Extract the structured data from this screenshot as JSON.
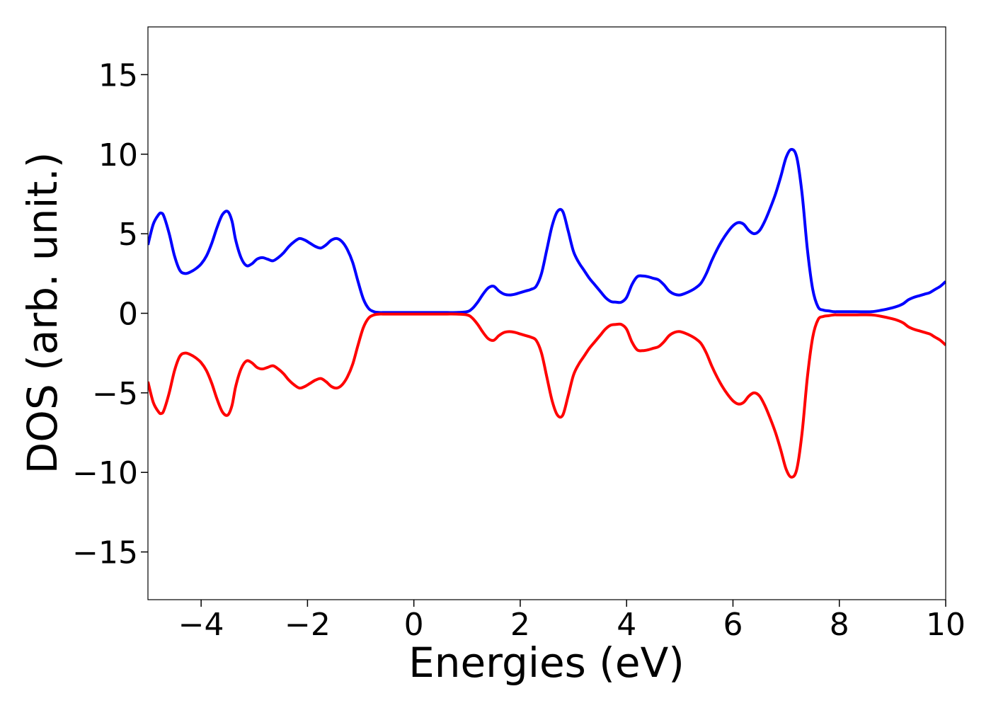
{
  "chart_data": {
    "type": "line",
    "xlabel": "Energies (eV)",
    "ylabel": "DOS (arb. unit.)",
    "xlim": [
      -5,
      10
    ],
    "ylim": [
      -18,
      18
    ],
    "xticks": [
      -4,
      -2,
      0,
      2,
      4,
      6,
      8,
      10
    ],
    "yticks": [
      -15,
      -10,
      -5,
      0,
      5,
      10,
      15
    ],
    "xtick_labels": [
      "−4",
      "−2",
      "0",
      "2",
      "4",
      "6",
      "8",
      "10"
    ],
    "ytick_labels": [
      "−15",
      "−10",
      "−5",
      "0",
      "5",
      "10",
      "15"
    ],
    "grid": false,
    "series": [
      {
        "color": "#0000ff",
        "x": [
          -5.0,
          -4.9,
          -4.8,
          -4.75,
          -4.7,
          -4.6,
          -4.5,
          -4.4,
          -4.3,
          -4.2,
          -4.1,
          -4.0,
          -3.9,
          -3.8,
          -3.7,
          -3.6,
          -3.5,
          -3.42,
          -3.35,
          -3.25,
          -3.15,
          -3.05,
          -2.95,
          -2.85,
          -2.75,
          -2.65,
          -2.55,
          -2.45,
          -2.35,
          -2.25,
          -2.15,
          -2.05,
          -1.95,
          -1.85,
          -1.75,
          -1.65,
          -1.55,
          -1.45,
          -1.35,
          -1.25,
          -1.15,
          -1.05,
          -0.95,
          -0.85,
          -0.75,
          -0.65,
          -0.55,
          -0.45,
          0.0,
          0.5,
          0.8,
          1.0,
          1.1,
          1.2,
          1.3,
          1.4,
          1.5,
          1.6,
          1.7,
          1.8,
          1.9,
          2.0,
          2.1,
          2.2,
          2.3,
          2.4,
          2.5,
          2.6,
          2.7,
          2.8,
          2.9,
          3.0,
          3.1,
          3.2,
          3.3,
          3.4,
          3.5,
          3.6,
          3.7,
          3.8,
          3.9,
          4.0,
          4.1,
          4.2,
          4.3,
          4.4,
          4.5,
          4.6,
          4.7,
          4.8,
          4.9,
          5.0,
          5.1,
          5.2,
          5.3,
          5.4,
          5.5,
          5.6,
          5.7,
          5.8,
          5.9,
          6.0,
          6.1,
          6.2,
          6.3,
          6.4,
          6.5,
          6.6,
          6.7,
          6.8,
          6.9,
          7.0,
          7.1,
          7.2,
          7.3,
          7.4,
          7.5,
          7.6,
          7.7,
          7.8,
          7.9,
          8.0,
          8.3,
          8.6,
          8.8,
          9.0,
          9.1,
          9.2,
          9.3,
          9.4,
          9.5,
          9.6,
          9.7,
          9.8,
          9.9,
          10.0
        ],
        "y": [
          4.3,
          5.6,
          6.2,
          6.3,
          6.1,
          5.0,
          3.6,
          2.7,
          2.5,
          2.6,
          2.8,
          3.1,
          3.6,
          4.4,
          5.4,
          6.2,
          6.4,
          5.8,
          4.6,
          3.5,
          3.0,
          3.1,
          3.4,
          3.5,
          3.4,
          3.3,
          3.5,
          3.8,
          4.2,
          4.5,
          4.7,
          4.6,
          4.4,
          4.2,
          4.1,
          4.3,
          4.6,
          4.7,
          4.5,
          4.0,
          3.2,
          2.0,
          0.9,
          0.3,
          0.1,
          0.05,
          0.05,
          0.05,
          0.05,
          0.05,
          0.05,
          0.1,
          0.3,
          0.7,
          1.2,
          1.6,
          1.7,
          1.4,
          1.2,
          1.15,
          1.2,
          1.3,
          1.4,
          1.5,
          1.7,
          2.5,
          4.0,
          5.5,
          6.4,
          6.4,
          5.2,
          3.9,
          3.2,
          2.7,
          2.2,
          1.8,
          1.4,
          1.0,
          0.75,
          0.7,
          0.7,
          1.0,
          1.8,
          2.3,
          2.35,
          2.3,
          2.2,
          2.1,
          1.8,
          1.4,
          1.2,
          1.15,
          1.25,
          1.4,
          1.6,
          1.9,
          2.5,
          3.3,
          4.0,
          4.6,
          5.1,
          5.5,
          5.7,
          5.6,
          5.2,
          5.0,
          5.2,
          5.8,
          6.6,
          7.5,
          8.6,
          9.8,
          10.3,
          9.8,
          7.5,
          4.0,
          1.5,
          0.4,
          0.2,
          0.15,
          0.1,
          0.1,
          0.1,
          0.1,
          0.2,
          0.35,
          0.45,
          0.6,
          0.85,
          1.0,
          1.1,
          1.2,
          1.3,
          1.5,
          1.7,
          2.0
        ]
      },
      {
        "color": "#ff0000",
        "x": [
          -5.0,
          -4.9,
          -4.8,
          -4.75,
          -4.7,
          -4.6,
          -4.5,
          -4.4,
          -4.3,
          -4.2,
          -4.1,
          -4.0,
          -3.9,
          -3.8,
          -3.7,
          -3.6,
          -3.5,
          -3.42,
          -3.35,
          -3.25,
          -3.15,
          -3.05,
          -2.95,
          -2.85,
          -2.75,
          -2.65,
          -2.55,
          -2.45,
          -2.35,
          -2.25,
          -2.15,
          -2.05,
          -1.95,
          -1.85,
          -1.75,
          -1.65,
          -1.55,
          -1.45,
          -1.35,
          -1.25,
          -1.15,
          -1.05,
          -0.95,
          -0.85,
          -0.75,
          -0.65,
          -0.55,
          -0.45,
          0.0,
          0.5,
          0.8,
          1.0,
          1.1,
          1.2,
          1.3,
          1.4,
          1.5,
          1.6,
          1.7,
          1.8,
          1.9,
          2.0,
          2.1,
          2.2,
          2.3,
          2.4,
          2.5,
          2.6,
          2.7,
          2.8,
          2.9,
          3.0,
          3.1,
          3.2,
          3.3,
          3.4,
          3.5,
          3.6,
          3.7,
          3.8,
          3.9,
          4.0,
          4.1,
          4.2,
          4.3,
          4.4,
          4.5,
          4.6,
          4.7,
          4.8,
          4.9,
          5.0,
          5.1,
          5.2,
          5.3,
          5.4,
          5.5,
          5.6,
          5.7,
          5.8,
          5.9,
          6.0,
          6.1,
          6.2,
          6.3,
          6.4,
          6.5,
          6.6,
          6.7,
          6.8,
          6.9,
          7.0,
          7.1,
          7.2,
          7.3,
          7.4,
          7.5,
          7.6,
          7.7,
          7.8,
          7.9,
          8.0,
          8.3,
          8.6,
          8.8,
          9.0,
          9.1,
          9.2,
          9.3,
          9.4,
          9.5,
          9.6,
          9.7,
          9.8,
          9.9,
          10.0
        ],
        "y": [
          -4.3,
          -5.6,
          -6.2,
          -6.3,
          -6.1,
          -5.0,
          -3.6,
          -2.7,
          -2.5,
          -2.6,
          -2.8,
          -3.1,
          -3.6,
          -4.4,
          -5.4,
          -6.2,
          -6.4,
          -5.8,
          -4.6,
          -3.5,
          -3.0,
          -3.1,
          -3.4,
          -3.5,
          -3.4,
          -3.3,
          -3.5,
          -3.8,
          -4.2,
          -4.5,
          -4.7,
          -4.6,
          -4.4,
          -4.2,
          -4.1,
          -4.3,
          -4.6,
          -4.7,
          -4.5,
          -4.0,
          -3.2,
          -2.0,
          -0.9,
          -0.3,
          -0.1,
          -0.05,
          -0.05,
          -0.05,
          -0.05,
          -0.05,
          -0.05,
          -0.1,
          -0.3,
          -0.7,
          -1.2,
          -1.6,
          -1.7,
          -1.4,
          -1.2,
          -1.15,
          -1.2,
          -1.3,
          -1.4,
          -1.5,
          -1.7,
          -2.5,
          -4.0,
          -5.5,
          -6.4,
          -6.4,
          -5.2,
          -3.9,
          -3.2,
          -2.7,
          -2.2,
          -1.8,
          -1.4,
          -1.0,
          -0.75,
          -0.7,
          -0.7,
          -1.0,
          -1.8,
          -2.3,
          -2.35,
          -2.3,
          -2.2,
          -2.1,
          -1.8,
          -1.4,
          -1.2,
          -1.15,
          -1.25,
          -1.4,
          -1.6,
          -1.9,
          -2.5,
          -3.3,
          -4.0,
          -4.6,
          -5.1,
          -5.5,
          -5.7,
          -5.6,
          -5.2,
          -5.0,
          -5.2,
          -5.8,
          -6.6,
          -7.5,
          -8.6,
          -9.8,
          -10.3,
          -9.8,
          -7.5,
          -4.0,
          -1.5,
          -0.4,
          -0.2,
          -0.15,
          -0.1,
          -0.1,
          -0.1,
          -0.1,
          -0.2,
          -0.35,
          -0.45,
          -0.6,
          -0.85,
          -1.0,
          -1.1,
          -1.2,
          -1.3,
          -1.5,
          -1.7,
          -2.0
        ]
      }
    ]
  }
}
